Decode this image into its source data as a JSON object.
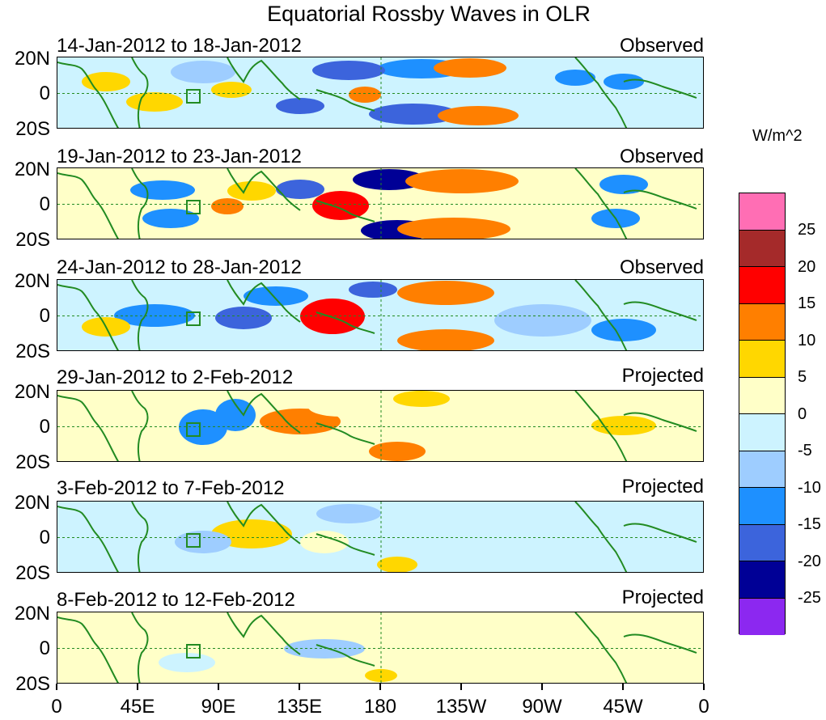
{
  "title": "Equatorial Rossby Waves in OLR",
  "units": "W/m^2",
  "panels": [
    {
      "date_range": "14-Jan-2012 to 18-Jan-2012",
      "status": "Observed"
    },
    {
      "date_range": "19-Jan-2012 to 23-Jan-2012",
      "status": "Observed"
    },
    {
      "date_range": "24-Jan-2012 to 28-Jan-2012",
      "status": "Observed"
    },
    {
      "date_range": "29-Jan-2012 to 2-Feb-2012",
      "status": "Projected"
    },
    {
      "date_range": "3-Feb-2012 to 7-Feb-2012",
      "status": "Projected"
    },
    {
      "date_range": "8-Feb-2012 to 12-Feb-2012",
      "status": "Projected"
    }
  ],
  "lat_labels": [
    "20N",
    "0",
    "20S"
  ],
  "lon_labels": [
    "0",
    "45E",
    "90E",
    "135E",
    "180",
    "135W",
    "90W",
    "45W",
    "0"
  ],
  "colorbar": {
    "labels": [
      "25",
      "20",
      "15",
      "10",
      "5",
      "0",
      "-5",
      "-10",
      "-15",
      "-20",
      "-25"
    ],
    "colors": [
      "#ff6eb4",
      "#a52a2a",
      "#ff0000",
      "#ff7f00",
      "#ffd700",
      "#ffffc8",
      "#cdf3ff",
      "#9ecdff",
      "#1e90ff",
      "#3c64dc",
      "#000096",
      "#8c28f0"
    ]
  },
  "palette": {
    "land": "#228b22",
    "equator": "#228b22",
    "border": "#000000"
  }
}
